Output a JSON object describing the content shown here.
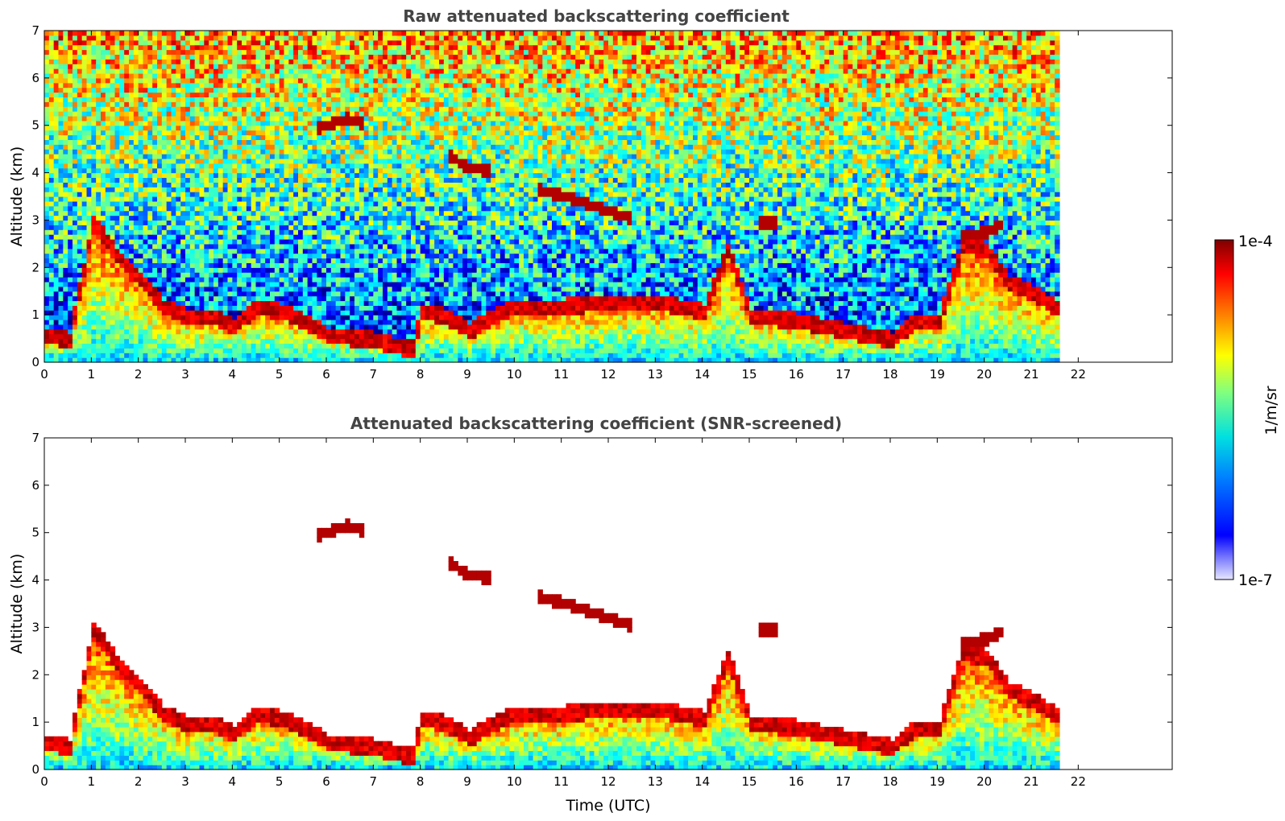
{
  "chart_data": [
    {
      "type": "heatmap",
      "title": "Raw attenuated backscattering coefficient",
      "xlabel": "",
      "ylabel": "Altitude (km)",
      "xlim": [
        0,
        24
      ],
      "ylim": [
        0,
        7
      ],
      "x_ticks": [
        "0",
        "1",
        "2",
        "3",
        "4",
        "5",
        "6",
        "7",
        "8",
        "9",
        "10",
        "11",
        "12",
        "13",
        "14",
        "15",
        "16",
        "17",
        "18",
        "19",
        "20",
        "21",
        "22"
      ],
      "y_ticks": [
        "0",
        "1",
        "2",
        "3",
        "4",
        "5",
        "6",
        "7"
      ],
      "data_end_time": 21.6,
      "screened": false,
      "layers": [
        {
          "kind": "boundary_layer",
          "t": [
            0.0,
            0.5,
            1.0,
            1.5,
            2.0,
            2.5,
            3.0,
            3.5,
            4.0,
            4.5,
            5.0,
            5.5,
            6.0,
            7.0,
            7.8,
            8.0,
            8.5,
            9.0,
            10.0,
            11.0,
            12.0,
            13.0,
            14.0,
            14.5,
            15.0,
            16.0,
            17.0,
            18.0,
            18.5,
            19.0,
            19.5,
            20.0,
            20.5,
            21.0,
            21.6
          ],
          "top_km": [
            0.7,
            0.6,
            3.1,
            2.4,
            1.9,
            1.3,
            1.1,
            1.1,
            0.9,
            1.3,
            1.2,
            1.0,
            0.7,
            0.6,
            0.4,
            1.2,
            1.1,
            0.8,
            1.3,
            1.3,
            1.4,
            1.4,
            1.2,
            2.5,
            1.1,
            1.0,
            0.8,
            0.6,
            1.0,
            1.0,
            2.6,
            2.5,
            1.8,
            1.6,
            1.2
          ]
        },
        {
          "kind": "thin_layer",
          "t": [
            5.8,
            6.1,
            6.4,
            6.7
          ],
          "alt_km": [
            4.9,
            5.0,
            5.1,
            5.0
          ]
        },
        {
          "kind": "thin_layer",
          "t": [
            8.6,
            9.0,
            9.4
          ],
          "alt_km": [
            4.3,
            4.05,
            4.0
          ]
        },
        {
          "kind": "thin_layer",
          "t": [
            10.5,
            11.2,
            11.8,
            12.4
          ],
          "alt_km": [
            3.6,
            3.4,
            3.2,
            3.0
          ]
        },
        {
          "kind": "thin_layer",
          "t": [
            15.2,
            15.5
          ],
          "alt_km": [
            2.9,
            2.9
          ]
        },
        {
          "kind": "thin_layer",
          "t": [
            19.5,
            20.0,
            20.3
          ],
          "alt_km": [
            2.6,
            2.7,
            2.85
          ]
        }
      ]
    },
    {
      "type": "heatmap",
      "title": "Attenuated backscattering coefficient (SNR-screened)",
      "xlabel": "Time (UTC)",
      "ylabel": "Altitude (km)",
      "xlim": [
        0,
        24
      ],
      "ylim": [
        0,
        7
      ],
      "x_ticks": [
        "0",
        "1",
        "2",
        "3",
        "4",
        "5",
        "6",
        "7",
        "8",
        "9",
        "10",
        "11",
        "12",
        "13",
        "14",
        "15",
        "16",
        "17",
        "18",
        "19",
        "20",
        "21",
        "22"
      ],
      "y_ticks": [
        "0",
        "1",
        "2",
        "3",
        "4",
        "5",
        "6",
        "7"
      ],
      "data_end_time": 21.6,
      "screened": true
    }
  ],
  "colorbar": {
    "label": "1/m/sr",
    "max_label": "1e-4",
    "min_label": "1e-7",
    "scale": "log",
    "colormap": "jet"
  },
  "colors": {
    "title": "#444444",
    "low": "#0000ff",
    "high": "#8b0000"
  }
}
